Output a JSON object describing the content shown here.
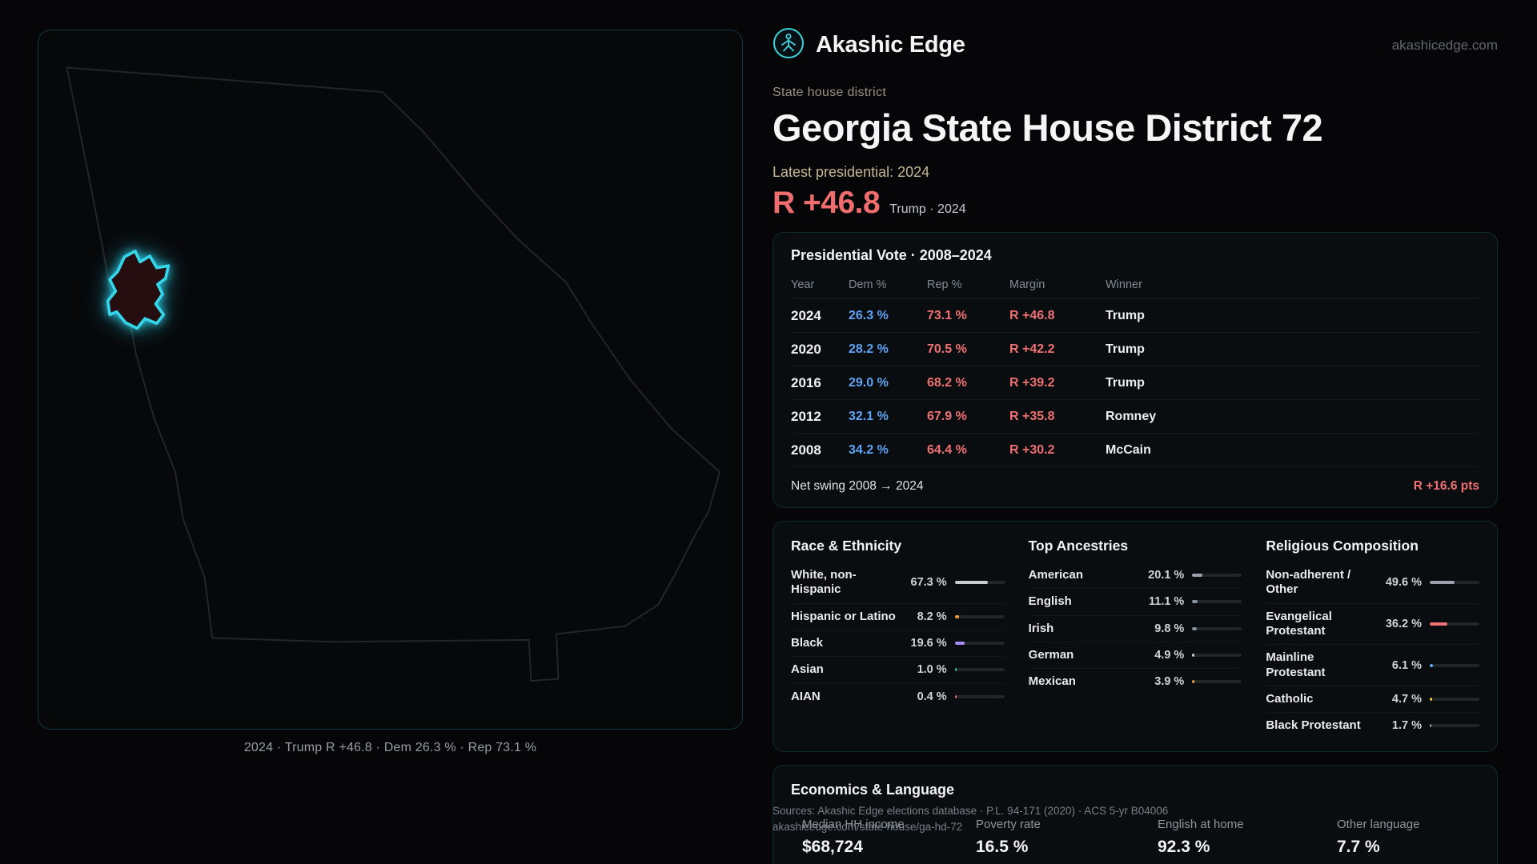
{
  "brand": {
    "name": "Akashic Edge",
    "site": "akashicedge.com"
  },
  "map": {
    "caption": "2024 · Trump R +46.8 · Dem 26.3 % · Rep 73.1 %"
  },
  "hero": {
    "kicker": "State house district",
    "title": "Georgia State House District 72",
    "latest": "Latest presidential: 2024",
    "margin": "R +46.8",
    "margin_caption": "Trump · 2024"
  },
  "presidential": {
    "title": "Presidential Vote · 2008–2024",
    "columns": [
      "Year",
      "Dem %",
      "Rep %",
      "Margin",
      "Winner"
    ],
    "rows": [
      {
        "year": "2024",
        "dem": "26.3 %",
        "rep": "73.1 %",
        "margin": "R +46.8",
        "winner": "Trump"
      },
      {
        "year": "2020",
        "dem": "28.2 %",
        "rep": "70.5 %",
        "margin": "R +42.2",
        "winner": "Trump"
      },
      {
        "year": "2016",
        "dem": "29.0 %",
        "rep": "68.2 %",
        "margin": "R +39.2",
        "winner": "Trump"
      },
      {
        "year": "2012",
        "dem": "32.1 %",
        "rep": "67.9 %",
        "margin": "R +35.8",
        "winner": "Romney"
      },
      {
        "year": "2008",
        "dem": "34.2 %",
        "rep": "64.4 %",
        "margin": "R +30.2",
        "winner": "McCain"
      }
    ],
    "net_swing_label": "Net swing 2008 → 2024",
    "net_swing_value": "R +16.6 pts"
  },
  "race": {
    "title": "Race & Ethnicity",
    "rows": [
      {
        "label": "White, non-Hispanic",
        "value": "67.3 %",
        "pct": 67.3,
        "color": "#c7cbd1"
      },
      {
        "label": "Hispanic or Latino",
        "value": "8.2 %",
        "pct": 8.2,
        "color": "#f0a13c"
      },
      {
        "label": "Black",
        "value": "19.6 %",
        "pct": 19.6,
        "color": "#a78bfa"
      },
      {
        "label": "Asian",
        "value": "1.0 %",
        "pct": 1.0,
        "color": "#34d399"
      },
      {
        "label": "AIAN",
        "value": "0.4 %",
        "pct": 0.4,
        "color": "#ef7171"
      }
    ]
  },
  "ancestries": {
    "title": "Top Ancestries",
    "rows": [
      {
        "label": "American",
        "value": "20.1 %",
        "pct": 20.1,
        "color": "#9aa3ad"
      },
      {
        "label": "English",
        "value": "11.1 %",
        "pct": 11.1,
        "color": "#8793a0"
      },
      {
        "label": "Irish",
        "value": "9.8 %",
        "pct": 9.8,
        "color": "#8793a0"
      },
      {
        "label": "German",
        "value": "4.9 %",
        "pct": 4.9,
        "color": "#cfd3d8"
      },
      {
        "label": "Mexican",
        "value": "3.9 %",
        "pct": 3.9,
        "color": "#f0a13c"
      }
    ]
  },
  "religion": {
    "title": "Religious Composition",
    "rows": [
      {
        "label": "Non-adherent / Other",
        "value": "49.6 %",
        "pct": 49.6,
        "color": "#9aa3ad"
      },
      {
        "label": "Evangelical Protestant",
        "value": "36.2 %",
        "pct": 36.2,
        "color": "#ef7171"
      },
      {
        "label": "Mainline Protestant",
        "value": "6.1 %",
        "pct": 6.1,
        "color": "#60a5fa"
      },
      {
        "label": "Catholic",
        "value": "4.7 %",
        "pct": 4.7,
        "color": "#f4c03e"
      },
      {
        "label": "Black Protestant",
        "value": "1.7 %",
        "pct": 1.7,
        "color": "#9aa3ad"
      }
    ]
  },
  "economics": {
    "title": "Economics & Language",
    "stats": [
      {
        "label": "Median HH income",
        "value": "$68,724"
      },
      {
        "label": "Poverty rate",
        "value": "16.5 %"
      },
      {
        "label": "English at home",
        "value": "92.3 %"
      },
      {
        "label": "Other language",
        "value": "7.7 %"
      }
    ]
  },
  "footer": {
    "sources": "Sources: Akashic Edge elections database · P.L. 94-171 (2020) · ACS 5-yr B04006",
    "permalink": "akashicedge.com/state-house/ga-hd-72"
  },
  "accent": "#22d3ee"
}
